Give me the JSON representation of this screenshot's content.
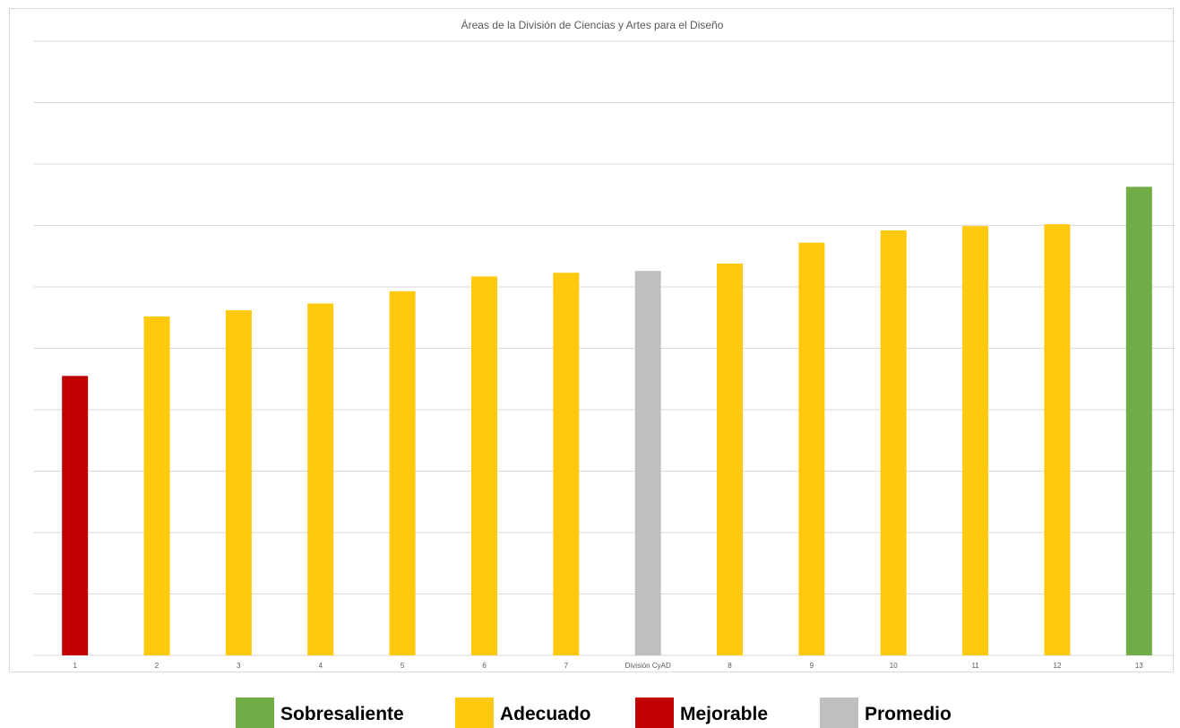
{
  "chart_data": {
    "type": "bar",
    "title": "Áreas de la División de Ciencias y Artes para el Diseño",
    "categories": [
      "1",
      "2",
      "3",
      "4",
      "5",
      "6",
      "7",
      "División CyAD",
      "8",
      "9",
      "10",
      "11",
      "12",
      "13"
    ],
    "values": [
      4.55,
      5.52,
      5.62,
      5.73,
      5.93,
      6.17,
      6.23,
      6.26,
      6.38,
      6.72,
      6.92,
      6.99,
      7.02,
      7.63
    ],
    "value_categories": [
      "Mejorable",
      "Adecuado",
      "Adecuado",
      "Adecuado",
      "Adecuado",
      "Adecuado",
      "Adecuado",
      "Promedio",
      "Adecuado",
      "Adecuado",
      "Adecuado",
      "Adecuado",
      "Adecuado",
      "Sobresaliente"
    ],
    "ylim": [
      0,
      10
    ],
    "ytick_step": 1,
    "y_tick_labels_shown": false,
    "grid": true,
    "xlabel": "",
    "ylabel": "",
    "colors": {
      "Sobresaliente": "#70ad47",
      "Adecuado": "#ffc90e",
      "Mejorable": "#c00000",
      "Promedio": "#bfbfbf",
      "grid": "#d9d9d9",
      "tick_text": "#595959",
      "title_text": "#595959"
    }
  },
  "legend": {
    "placement": "bottom-center",
    "items": [
      {
        "label": "Sobresaliente",
        "color": "#70ad47"
      },
      {
        "label": "Adecuado",
        "color": "#ffc90e"
      },
      {
        "label": "Mejorable",
        "color": "#c00000"
      },
      {
        "label": "Promedio",
        "color": "#bfbfbf"
      }
    ]
  }
}
